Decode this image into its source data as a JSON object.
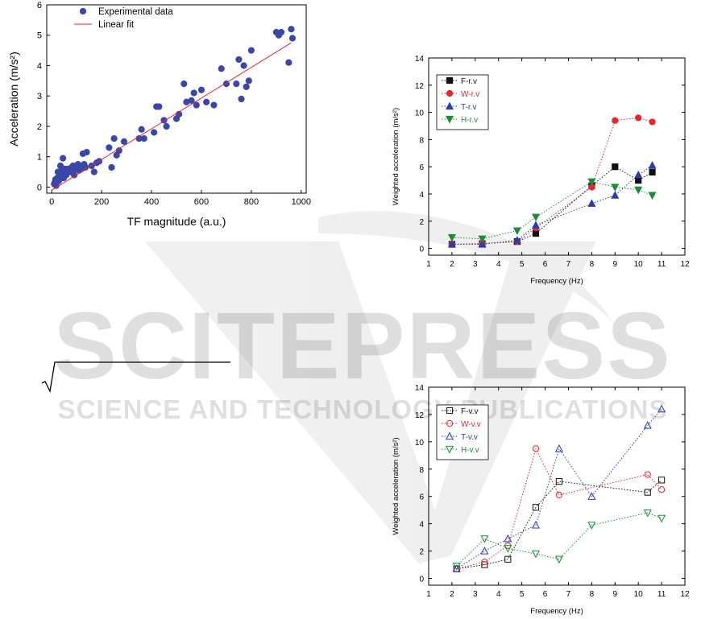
{
  "watermark": {
    "main": "SCITEPRESS",
    "sub": "SCIENCE AND TECHNOLOGY PUBLICATIONS"
  },
  "chart_data": [
    {
      "type": "scatter",
      "xlabel": "TF magnitude (a.u.)",
      "ylabel": "Acceleration (m/s²)",
      "xlim": [
        -20,
        1020
      ],
      "ylim": [
        -0.2,
        6
      ],
      "xticks": [
        "0",
        "200",
        "400",
        "600",
        "800",
        "1000"
      ],
      "yticks": [
        "0",
        "1",
        "2",
        "3",
        "4",
        "5",
        "6"
      ],
      "legend_position": "top-left",
      "grid": false,
      "series": [
        {
          "name": "Experimental data",
          "marker": "filled-circle",
          "color": "#3a47a8",
          "x": [
            10,
            12,
            15,
            18,
            20,
            22,
            25,
            28,
            30,
            32,
            35,
            38,
            40,
            42,
            45,
            48,
            50,
            52,
            55,
            58,
            60,
            65,
            70,
            75,
            80,
            85,
            90,
            95,
            100,
            105,
            110,
            115,
            120,
            125,
            130,
            135,
            140,
            160,
            170,
            180,
            190,
            230,
            240,
            250,
            260,
            270,
            290,
            350,
            360,
            370,
            410,
            420,
            430,
            450,
            460,
            500,
            510,
            530,
            540,
            560,
            570,
            580,
            600,
            620,
            650,
            680,
            700,
            740,
            750,
            760,
            770,
            780,
            790,
            800,
            900,
            910,
            920,
            950,
            960,
            965
          ],
          "y": [
            0.1,
            0.15,
            0.25,
            0.05,
            0.2,
            0.3,
            0.5,
            0.2,
            0.25,
            0.35,
            0.7,
            0.4,
            0.3,
            0.6,
            0.95,
            0.3,
            0.5,
            0.6,
            0.45,
            0.4,
            0.55,
            0.6,
            0.5,
            0.5,
            0.65,
            0.7,
            0.4,
            0.6,
            0.7,
            0.75,
            0.55,
            0.7,
            0.6,
            1.1,
            0.75,
            0.65,
            1.15,
            0.7,
            0.5,
            0.8,
            0.85,
            1.3,
            0.65,
            1.6,
            1.05,
            1.2,
            1.5,
            1.6,
            1.9,
            1.6,
            1.8,
            2.65,
            2.65,
            2.2,
            2.0,
            2.25,
            2.4,
            3.4,
            2.8,
            2.85,
            3.1,
            2.7,
            3.2,
            2.8,
            2.7,
            3.9,
            3.4,
            3.4,
            4.2,
            2.9,
            4.0,
            3.3,
            3.5,
            4.5,
            5.1,
            5.0,
            5.1,
            4.1,
            5.2,
            4.9
          ]
        },
        {
          "name": "Linear fit",
          "color": "#e8242e",
          "x": [
            0,
            960
          ],
          "y": [
            -0.1,
            4.75
          ]
        }
      ]
    },
    {
      "type": "line",
      "xlabel": "Frequency (Hz)",
      "ylabel": "Weighted acceleration (m/s²)",
      "xlim": [
        1,
        12
      ],
      "ylim": [
        -0.5,
        14
      ],
      "xticks": [
        "1",
        "2",
        "3",
        "4",
        "5",
        "6",
        "7",
        "8",
        "9",
        "10",
        "11",
        "12"
      ],
      "yticks": [
        "0",
        "2",
        "4",
        "6",
        "8",
        "10",
        "12",
        "14"
      ],
      "legend_position": "top-left",
      "grid": false,
      "series": [
        {
          "name": "F-r.v",
          "marker": "filled-square",
          "color": "#111111",
          "x": [
            2,
            3.3,
            4.8,
            5.6,
            8,
            9,
            10,
            10.6
          ],
          "y": [
            0.3,
            0.35,
            0.5,
            1.1,
            4.6,
            6.0,
            5.0,
            5.6
          ]
        },
        {
          "name": "W-r.v",
          "marker": "filled-circle",
          "color": "#e8242e",
          "x": [
            2,
            3.3,
            4.8,
            5.6,
            8,
            9,
            10,
            10.6
          ],
          "y": [
            0.3,
            0.35,
            0.5,
            1.5,
            4.5,
            9.4,
            9.6,
            9.3
          ]
        },
        {
          "name": "T-r.v",
          "marker": "filled-triangle-up",
          "color": "#2a3bb0",
          "x": [
            2,
            3.3,
            4.8,
            5.6,
            8,
            9,
            10,
            10.6
          ],
          "y": [
            0.3,
            0.3,
            0.6,
            1.7,
            3.3,
            3.9,
            5.4,
            6.1
          ]
        },
        {
          "name": "H-r.v",
          "marker": "filled-triangle-down",
          "color": "#1e8a3a",
          "x": [
            2,
            3.3,
            4.8,
            5.6,
            8,
            9,
            10,
            10.6
          ],
          "y": [
            0.8,
            0.7,
            1.3,
            2.3,
            4.9,
            4.5,
            4.3,
            3.9
          ]
        }
      ]
    },
    {
      "type": "line",
      "xlabel": "Frequency (Hz)",
      "ylabel": "Weighted acceleration (m/s²)",
      "xlim": [
        1,
        12
      ],
      "ylim": [
        -0.5,
        14
      ],
      "xticks": [
        "1",
        "2",
        "3",
        "4",
        "5",
        "6",
        "7",
        "8",
        "9",
        "10",
        "11",
        "12"
      ],
      "yticks": [
        "0",
        "2",
        "4",
        "6",
        "8",
        "10",
        "12",
        "14"
      ],
      "legend_position": "top-left",
      "grid": false,
      "series": [
        {
          "name": "F-v.v",
          "marker": "open-square",
          "color": "#111111",
          "x": [
            2.2,
            3.4,
            4.4,
            5.6,
            6.6,
            10.4,
            11
          ],
          "y": [
            0.7,
            1.0,
            1.4,
            5.2,
            7.1,
            6.3,
            7.2
          ]
        },
        {
          "name": "W-v.v",
          "marker": "open-circle",
          "color": "#e8242e",
          "x": [
            2.2,
            3.4,
            4.4,
            5.6,
            6.6,
            10.4,
            11
          ],
          "y": [
            0.7,
            1.2,
            2.4,
            9.5,
            6.1,
            7.6,
            6.5
          ]
        },
        {
          "name": "T-v.v",
          "marker": "open-triangle-up",
          "color": "#2a3bb0",
          "x": [
            2.2,
            3.4,
            4.4,
            5.6,
            6.6,
            8,
            10.4,
            11
          ],
          "y": [
            0.7,
            2.0,
            2.9,
            3.9,
            9.5,
            6.0,
            11.2,
            12.4
          ]
        },
        {
          "name": "H-v.v",
          "marker": "open-triangle-down",
          "color": "#1e8a3a",
          "x": [
            2.2,
            3.4,
            4.4,
            5.6,
            6.6,
            8,
            10.4,
            11
          ],
          "y": [
            0.9,
            2.9,
            2.2,
            1.8,
            1.4,
            3.9,
            4.8,
            4.4
          ]
        }
      ]
    }
  ]
}
